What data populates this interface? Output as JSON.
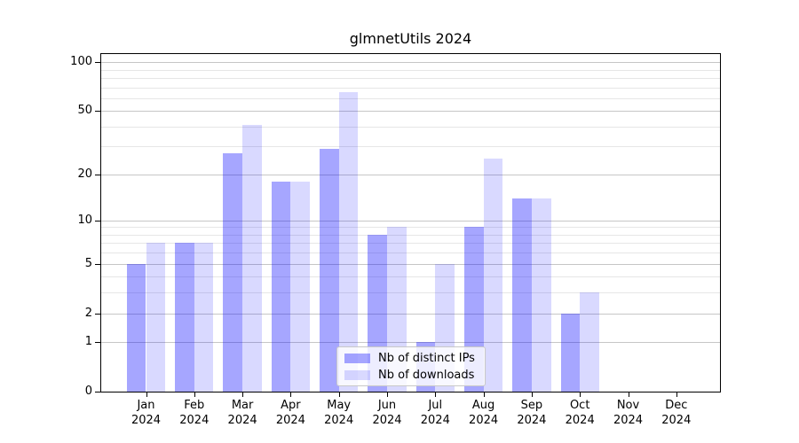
{
  "chart_data": {
    "type": "bar",
    "title": "glmnetUtils 2024",
    "categories": [
      "Jan 2024",
      "Feb 2024",
      "Mar 2024",
      "Apr 2024",
      "May 2024",
      "Jun 2024",
      "Jul 2024",
      "Aug 2024",
      "Sep 2024",
      "Oct 2024",
      "Nov 2024",
      "Dec 2024"
    ],
    "series": [
      {
        "name": "Nb of distinct IPs",
        "values": [
          5,
          7,
          27,
          18,
          29,
          8,
          1,
          9,
          14,
          2,
          0,
          0
        ],
        "color": "rgba(0,0,255,0.35)"
      },
      {
        "name": "Nb of downloads",
        "values": [
          7,
          7,
          41,
          18,
          65,
          9,
          5,
          25,
          14,
          3,
          0,
          0
        ],
        "color": "rgba(0,0,255,0.15)"
      }
    ],
    "xlabel": "",
    "ylabel": "",
    "y_axis": {
      "scale": "log1p",
      "tick_values": [
        0,
        1,
        2,
        5,
        10,
        20,
        50,
        100
      ],
      "minor_gridline_values": [
        3,
        4,
        6,
        7,
        8,
        9,
        30,
        40,
        60,
        70,
        80,
        90
      ],
      "axis_top_value": 112
    },
    "grid": "on",
    "legend": {
      "position": "inside-bottom-center",
      "entries": [
        "Nb of distinct IPs",
        "Nb of downloads"
      ]
    }
  },
  "colors": {
    "bar_distinct_ips": "rgba(0,0,255,0.35)",
    "bar_downloads": "rgba(0,0,255,0.15)",
    "major_grid": "#c6c6c6",
    "minor_grid": "#e6e6e6",
    "spine": "#000000",
    "legend_border": "#c8c8c8",
    "legend_background": "rgba(255,255,255,0.8)"
  }
}
